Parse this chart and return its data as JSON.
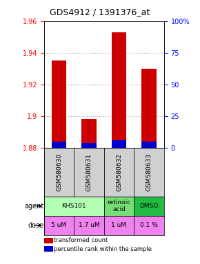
{
  "title": "GDS4912 / 1391376_at",
  "samples": [
    "GSM580630",
    "GSM580631",
    "GSM580632",
    "GSM580633"
  ],
  "red_values": [
    1.935,
    1.898,
    1.953,
    1.93
  ],
  "blue_values": [
    1.883,
    1.882,
    1.884,
    1.883
  ],
  "red_base": 1.88,
  "ylim": [
    1.88,
    1.96
  ],
  "yticks_left": [
    1.88,
    1.9,
    1.92,
    1.94,
    1.96
  ],
  "yticks_right": [
    0,
    25,
    50,
    75,
    100
  ],
  "yticks_right_labels": [
    "0",
    "25",
    "50",
    "75",
    "100%"
  ],
  "dose_labels": [
    "5 uM",
    "1.7 uM",
    "1 uM",
    "0.1 %"
  ],
  "dose_color": "#ee82ee",
  "sample_bg": "#d0d0d0",
  "bar_red": "#cc0000",
  "bar_blue": "#0000cc",
  "grid_color": "#aaaaaa",
  "agent_info": [
    {
      "c0": 0,
      "c1": 1,
      "label": "KHS101",
      "color": "#b3ffb3"
    },
    {
      "c0": 2,
      "c1": 2,
      "label": "retinoic\nacid",
      "color": "#77dd77"
    },
    {
      "c0": 3,
      "c1": 3,
      "label": "DMSO",
      "color": "#22bb44"
    }
  ]
}
